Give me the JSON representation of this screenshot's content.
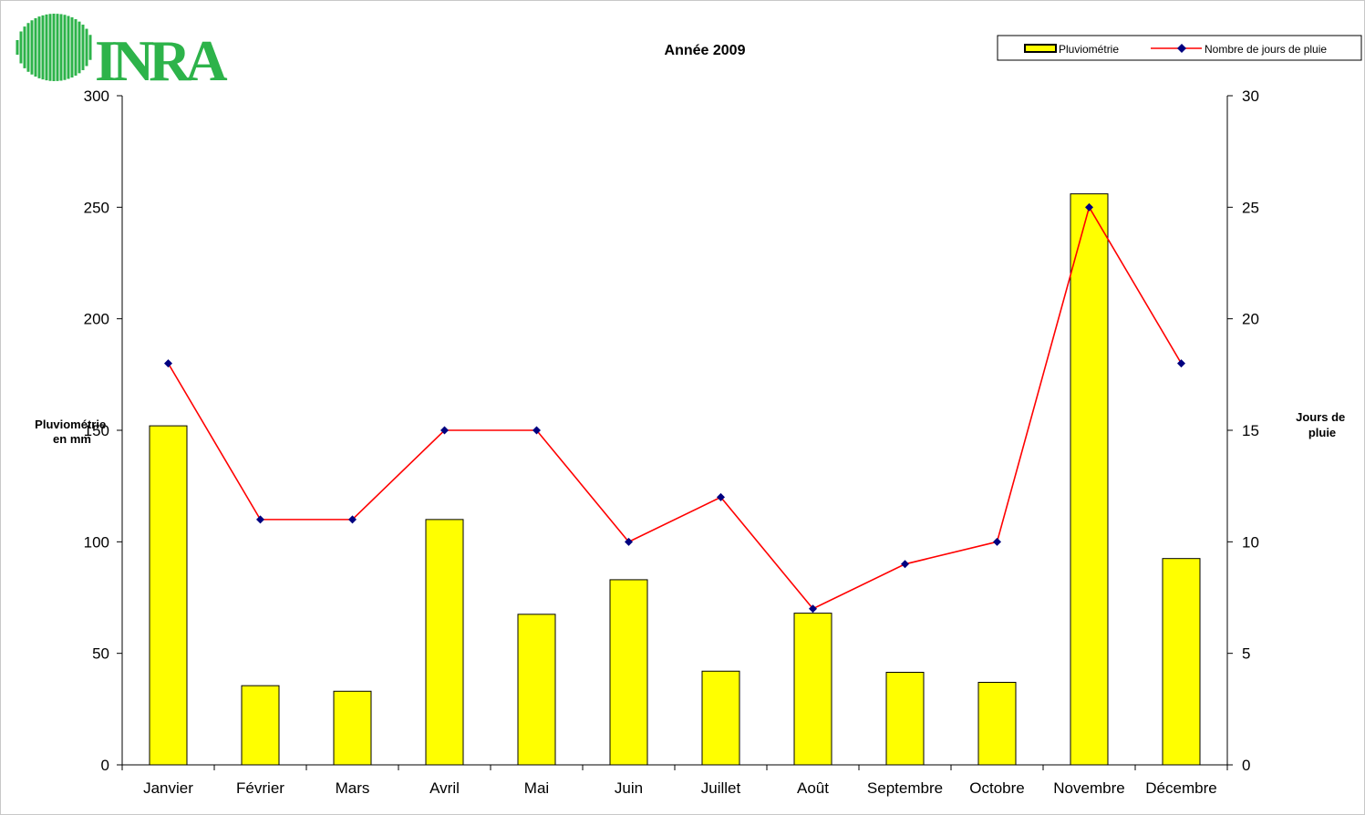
{
  "logo": {
    "text": "INRA",
    "color": "#2db34a"
  },
  "chart_data": {
    "type": "bar",
    "title": "Année 2009",
    "categories": [
      "Janvier",
      "Février",
      "Mars",
      "Avril",
      "Mai",
      "Juin",
      "Juillet",
      "Août",
      "Septembre",
      "Octobre",
      "Novembre",
      "Décembre"
    ],
    "series": [
      {
        "name": "Pluviométrie",
        "type": "bar",
        "axis": "left",
        "color": "#ffff00",
        "values": [
          152,
          35.5,
          33,
          110,
          67.5,
          83,
          42,
          68,
          41.5,
          37,
          256,
          92.5
        ]
      },
      {
        "name": "Nombre de jours de pluie",
        "type": "line",
        "axis": "right",
        "color": "#ff0000",
        "marker_color": "#000080",
        "values": [
          18,
          11,
          11,
          15,
          15,
          10,
          12,
          7,
          9,
          10,
          25,
          18
        ]
      }
    ],
    "ylabel": "Pluviométrie en mm",
    "ylabel_lines": [
      "Pluviométrie",
      "en mm"
    ],
    "y2label": "Jours de pluie",
    "y2label_lines": [
      "Jours de",
      "pluie"
    ],
    "ylim": [
      0,
      300
    ],
    "y2lim": [
      0,
      30
    ],
    "yticks": [
      0,
      50,
      100,
      150,
      200,
      250,
      300
    ],
    "y2ticks": [
      0,
      5,
      10,
      15,
      20,
      25,
      30
    ],
    "grid": false,
    "legend_position": "top-right"
  }
}
